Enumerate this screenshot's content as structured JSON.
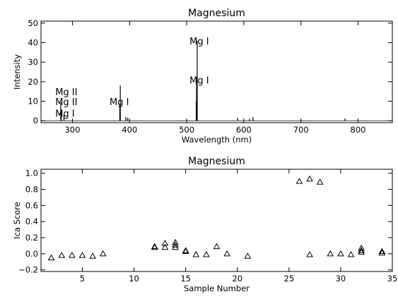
{
  "chart_data": [
    {
      "type": "line",
      "title": "Magnesium",
      "xlabel": "Wavelength (nm)",
      "ylabel": "Intensity",
      "xlim": [
        245,
        860
      ],
      "ylim": [
        -1,
        51
      ],
      "xticks": [
        300,
        400,
        500,
        600,
        700,
        800
      ],
      "yticks": [
        0,
        10,
        20,
        30,
        40,
        50
      ],
      "grid": false,
      "series": [
        {
          "peaks": [
            {
              "x": 279.6,
              "y": 9.5
            },
            {
              "x": 280.3,
              "y": 5.5
            },
            {
              "x": 285.2,
              "y": 3.0
            },
            {
              "x": 383.8,
              "y": 18.0
            },
            {
              "x": 382.9,
              "y": 8.5
            },
            {
              "x": 393.4,
              "y": 2.0
            },
            {
              "x": 396.8,
              "y": 1.5
            },
            {
              "x": 516.7,
              "y": 10.0
            },
            {
              "x": 517.3,
              "y": 22.0
            },
            {
              "x": 518.4,
              "y": 41.0
            },
            {
              "x": 589.0,
              "y": 1.5
            },
            {
              "x": 610.0,
              "y": 1.0
            },
            {
              "x": 616.0,
              "y": 1.8
            },
            {
              "x": 777.0,
              "y": 1.2
            }
          ]
        }
      ],
      "annotations": [
        {
          "text": "Mg II",
          "x": 270,
          "y": 13
        },
        {
          "text": "Mg II",
          "x": 270,
          "y": 8
        },
        {
          "text": "Mg I",
          "x": 270,
          "y": 2
        },
        {
          "text": "Mg I",
          "x": 365,
          "y": 8
        },
        {
          "text": "Mg I",
          "x": 505,
          "y": 39
        },
        {
          "text": "Mg I",
          "x": 505,
          "y": 19
        }
      ]
    },
    {
      "type": "scatter",
      "title": "Magnesium",
      "xlabel": "Sample Number",
      "ylabel": "Ica Score",
      "xlim": [
        1,
        35
      ],
      "ylim": [
        -0.22,
        1.05
      ],
      "xticks": [
        5,
        10,
        15,
        20,
        25,
        30,
        35
      ],
      "yticks": [
        -0.2,
        0.0,
        0.2,
        0.4,
        0.6,
        0.8,
        1.0
      ],
      "ytick_labels": [
        "−0.2",
        "0.0",
        "0.2",
        "0.4",
        "0.6",
        "0.8",
        "1.0"
      ],
      "marker": "triangle",
      "grid": false,
      "series": [
        {
          "points": [
            {
              "x": 2,
              "y": -0.05
            },
            {
              "x": 3,
              "y": -0.02
            },
            {
              "x": 4,
              "y": -0.02
            },
            {
              "x": 5,
              "y": -0.02
            },
            {
              "x": 6,
              "y": -0.03
            },
            {
              "x": 7,
              "y": 0.0
            },
            {
              "x": 12,
              "y": 0.09
            },
            {
              "x": 12,
              "y": 0.08
            },
            {
              "x": 13,
              "y": 0.13
            },
            {
              "x": 13,
              "y": 0.08
            },
            {
              "x": 14,
              "y": 0.14
            },
            {
              "x": 14,
              "y": 0.11
            },
            {
              "x": 14,
              "y": 0.08
            },
            {
              "x": 15,
              "y": 0.04
            },
            {
              "x": 15,
              "y": 0.03
            },
            {
              "x": 16,
              "y": -0.01
            },
            {
              "x": 17,
              "y": -0.01
            },
            {
              "x": 18,
              "y": 0.09
            },
            {
              "x": 19,
              "y": 0.0
            },
            {
              "x": 21,
              "y": -0.03
            },
            {
              "x": 26,
              "y": 0.9
            },
            {
              "x": 27,
              "y": 0.93
            },
            {
              "x": 27,
              "y": -0.01
            },
            {
              "x": 28,
              "y": 0.89
            },
            {
              "x": 29,
              "y": 0.0
            },
            {
              "x": 30,
              "y": 0.0
            },
            {
              "x": 31,
              "y": -0.01
            },
            {
              "x": 32,
              "y": 0.07
            },
            {
              "x": 32,
              "y": 0.04
            },
            {
              "x": 32,
              "y": 0.02
            },
            {
              "x": 34,
              "y": 0.03
            },
            {
              "x": 34,
              "y": 0.01
            }
          ]
        }
      ]
    }
  ]
}
